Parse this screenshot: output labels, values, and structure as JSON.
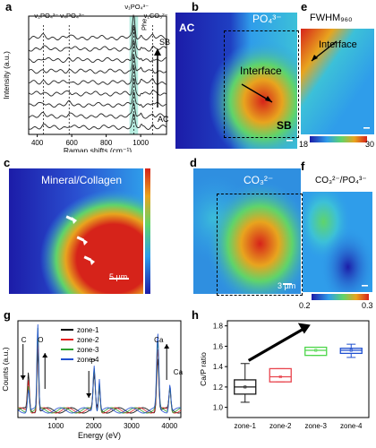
{
  "panel_labels": {
    "a": "a",
    "b": "b",
    "c": "c",
    "d": "d",
    "e": "e",
    "f": "f",
    "g": "g",
    "h": "h"
  },
  "colors": {
    "map_low": "#1c1ca8",
    "map_mid": "#2f9dea",
    "map_high": "#d6231a",
    "box_green": "#4dd64a",
    "box_red": "#e8454e",
    "box_black": "#1a1a1a"
  },
  "panel_b": {
    "title": "PO₄³⁻",
    "left_tag": "AC",
    "right_tag": "SB",
    "arrow_label": "Interface"
  },
  "panel_c": {
    "title": "Mineral/Collagen",
    "scale": "5 µm"
  },
  "panel_d": {
    "title": "CO₃²⁻",
    "scale": "3 µm"
  },
  "panel_e": {
    "title": "FWHM₉₆₀",
    "arrow_label": "Interface",
    "cbar_min": "18",
    "cbar_max": "30"
  },
  "panel_f": {
    "title": "CO₃²⁻/PO₄³⁻",
    "cbar_min": "0.2",
    "cbar_max": "0.3"
  },
  "chart_data": [
    {
      "panel": "a",
      "type": "line",
      "xlabel": "Raman shifts (cm⁻¹)",
      "ylabel": "Intensity (a.u.)",
      "xlim": [
        350,
        1150
      ],
      "xticks": [
        400,
        600,
        800,
        1000
      ],
      "annotations": [
        {
          "label": "ν₂PO₄³⁻",
          "x": 435
        },
        {
          "label": "ν₄PO₄³⁻",
          "x": 585
        },
        {
          "label": "ν₁PO₄³⁻",
          "x": 960
        },
        {
          "label": "Phe",
          "x": 1003
        },
        {
          "label": "ν₁CO₃²⁻",
          "x": 1070
        }
      ],
      "top_tag": "SB",
      "bottom_tag": "AC",
      "n_spectra": 9
    },
    {
      "panel": "g",
      "type": "line",
      "xlabel": "Energy (eV)",
      "ylabel": "Counts (a.u.)",
      "xlim": [
        0,
        4300
      ],
      "xticks": [
        1000,
        2000,
        3000,
        4000
      ],
      "series": [
        {
          "name": "zone-1",
          "color": "#000000"
        },
        {
          "name": "zone-2",
          "color": "#e02020"
        },
        {
          "name": "zone-3",
          "color": "#2fa02f"
        },
        {
          "name": "zone-4",
          "color": "#2050d0"
        }
      ],
      "peaks": [
        {
          "label": "C",
          "x": 277
        },
        {
          "label": "O",
          "x": 525
        },
        {
          "label": "P",
          "x": 2013
        },
        {
          "label": "Ca",
          "x": 3690
        },
        {
          "label": "Ca",
          "x": 4012
        }
      ]
    },
    {
      "panel": "h",
      "type": "box",
      "ylabel": "Ca/P ratio",
      "categories": [
        "zone-1",
        "zone-2",
        "zone-3",
        "zone-4"
      ],
      "ylim": [
        0.9,
        1.85
      ],
      "yticks": [
        1.0,
        1.2,
        1.4,
        1.6,
        1.8
      ],
      "boxes": [
        {
          "min": 1.05,
          "q1": 1.13,
          "median": 1.2,
          "q3": 1.27,
          "max": 1.43,
          "mean": 1.2,
          "color": "#1a1a1a"
        },
        {
          "min": 1.25,
          "q1": 1.25,
          "median": 1.3,
          "q3": 1.38,
          "max": 1.38,
          "mean": 1.3,
          "color": "#e8454e"
        },
        {
          "min": 1.51,
          "q1": 1.51,
          "median": 1.56,
          "q3": 1.59,
          "max": 1.59,
          "mean": 1.56,
          "color": "#4dd64a"
        },
        {
          "min": 1.49,
          "q1": 1.53,
          "median": 1.56,
          "q3": 1.58,
          "max": 1.62,
          "mean": 1.56,
          "color": "#2050d0"
        }
      ]
    }
  ]
}
